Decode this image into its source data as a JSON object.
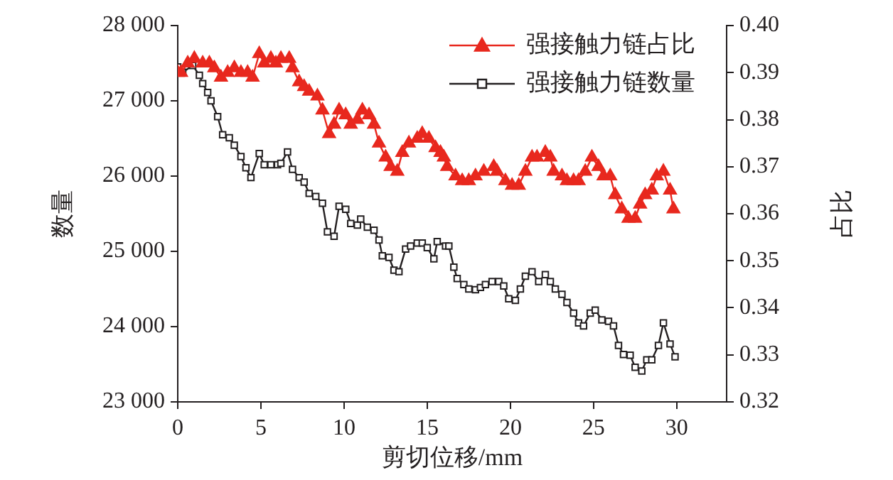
{
  "chart_data": {
    "type": "line",
    "xlabel": "剪切位移/mm",
    "ylabel": "数量",
    "y2label": "占比",
    "xlim": [
      0,
      33
    ],
    "xticks": [
      0,
      5,
      10,
      15,
      20,
      25,
      30
    ],
    "ylim": [
      23000,
      28000
    ],
    "yticks": [
      {
        "value": 23000,
        "label": "23 000"
      },
      {
        "value": 24000,
        "label": "24 000"
      },
      {
        "value": 25000,
        "label": "25 000"
      },
      {
        "value": 26000,
        "label": "26 000"
      },
      {
        "value": 27000,
        "label": "27 000"
      },
      {
        "value": 28000,
        "label": "28 000"
      }
    ],
    "y2lim": [
      0.32,
      0.4
    ],
    "y2ticks": [
      {
        "value": 0.32,
        "label": "0.32"
      },
      {
        "value": 0.33,
        "label": "0.33"
      },
      {
        "value": 0.34,
        "label": "0.34"
      },
      {
        "value": 0.35,
        "label": "0.35"
      },
      {
        "value": 0.36,
        "label": "0.36"
      },
      {
        "value": 0.37,
        "label": "0.37"
      },
      {
        "value": 0.38,
        "label": "0.38"
      },
      {
        "value": 0.39,
        "label": "0.39"
      },
      {
        "value": 0.4,
        "label": "0.40"
      }
    ],
    "grid": false,
    "legend": "top right",
    "line_style": "solid",
    "series": [
      {
        "name": "强接触力链占比",
        "color": "#e8281e",
        "axis": "y2",
        "marker": "triangle",
        "x": [
          0,
          0.2,
          0.6,
          1.0,
          1.5,
          1.9,
          2.2,
          2.6,
          3.0,
          3.4,
          3.8,
          4.2,
          4.5,
          4.9,
          5.2,
          5.6,
          5.9,
          6.2,
          6.7,
          6.9,
          7.3,
          7.6,
          7.9,
          8.4,
          8.7,
          9.1,
          9.4,
          9.7,
          10.1,
          10.4,
          10.8,
          11.1,
          11.5,
          11.8,
          12.1,
          12.5,
          12.8,
          13.2,
          13.5,
          13.9,
          14.4,
          14.7,
          15.1,
          15.5,
          15.8,
          16.0,
          16.2,
          16.7,
          17.1,
          17.5,
          17.9,
          18.4,
          19.0,
          19.2,
          19.7,
          20.1,
          20.5,
          20.9,
          21.3,
          21.6,
          22.1,
          22.4,
          22.6,
          23.1,
          23.4,
          23.8,
          24.1,
          24.5,
          24.9,
          25.3,
          25.6,
          26.0,
          26.3,
          26.7,
          27.1,
          27.5,
          27.8,
          28.1,
          28.5,
          28.8,
          29.2,
          29.6,
          29.8
        ],
        "values": [
          0.39,
          0.39,
          0.392,
          0.393,
          0.392,
          0.392,
          0.391,
          0.389,
          0.39,
          0.391,
          0.39,
          0.39,
          0.389,
          0.394,
          0.392,
          0.393,
          0.392,
          0.393,
          0.393,
          0.391,
          0.388,
          0.387,
          0.386,
          0.385,
          0.382,
          0.377,
          0.379,
          0.382,
          0.381,
          0.379,
          0.38,
          0.382,
          0.381,
          0.379,
          0.375,
          0.372,
          0.37,
          0.369,
          0.373,
          0.375,
          0.376,
          0.377,
          0.376,
          0.374,
          0.373,
          0.372,
          0.37,
          0.368,
          0.367,
          0.367,
          0.368,
          0.369,
          0.37,
          0.369,
          0.367,
          0.366,
          0.366,
          0.369,
          0.372,
          0.372,
          0.373,
          0.372,
          0.369,
          0.368,
          0.367,
          0.367,
          0.367,
          0.369,
          0.372,
          0.37,
          0.368,
          0.368,
          0.364,
          0.361,
          0.359,
          0.359,
          0.362,
          0.364,
          0.365,
          0.368,
          0.369,
          0.365,
          0.361
        ]
      },
      {
        "name": "强接触力链数量",
        "color": "#231f20",
        "marker": "square",
        "x": [
          0,
          0.3,
          0.9,
          1.3,
          1.5,
          1.8,
          2.0,
          2.4,
          2.7,
          3.1,
          3.4,
          3.8,
          4.1,
          4.4,
          4.9,
          5.2,
          5.6,
          6.0,
          6.2,
          6.6,
          6.9,
          7.3,
          7.6,
          7.9,
          8.3,
          8.7,
          9.0,
          9.4,
          9.7,
          10.1,
          10.4,
          10.8,
          11.0,
          11.4,
          11.8,
          12.1,
          12.3,
          12.7,
          13.0,
          13.3,
          13.7,
          14.0,
          14.4,
          14.7,
          15.0,
          15.4,
          15.6,
          16.1,
          16.3,
          16.6,
          16.8,
          17.2,
          17.5,
          17.9,
          18.2,
          18.5,
          18.9,
          19.3,
          19.6,
          19.9,
          20.3,
          20.6,
          20.9,
          21.3,
          21.7,
          22.1,
          22.4,
          22.7,
          23.1,
          23.4,
          23.8,
          24.1,
          24.4,
          24.8,
          25.1,
          25.5,
          25.9,
          26.2,
          26.5,
          26.8,
          27.2,
          27.5,
          27.9,
          28.2,
          28.5,
          28.9,
          29.2,
          29.6,
          29.9
        ],
        "values": [
          27450,
          27380,
          27470,
          27340,
          27230,
          27110,
          27000,
          26790,
          26550,
          26510,
          26410,
          26260,
          26110,
          25980,
          26300,
          26150,
          26150,
          26150,
          26170,
          26320,
          26090,
          25980,
          25920,
          25770,
          25730,
          25640,
          25260,
          25200,
          25600,
          25560,
          25370,
          25350,
          25430,
          25320,
          25280,
          25150,
          24940,
          24920,
          24750,
          24730,
          25030,
          25070,
          25110,
          25110,
          25050,
          24900,
          25130,
          25070,
          25070,
          24790,
          24640,
          24560,
          24500,
          24490,
          24520,
          24560,
          24600,
          24600,
          24540,
          24370,
          24350,
          24500,
          24670,
          24730,
          24600,
          24690,
          24600,
          24500,
          24430,
          24320,
          24180,
          24050,
          24010,
          24180,
          24220,
          24090,
          24070,
          24010,
          23750,
          23630,
          23620,
          23460,
          23410,
          23560,
          23560,
          23750,
          24050,
          23770,
          23600
        ]
      }
    ]
  }
}
